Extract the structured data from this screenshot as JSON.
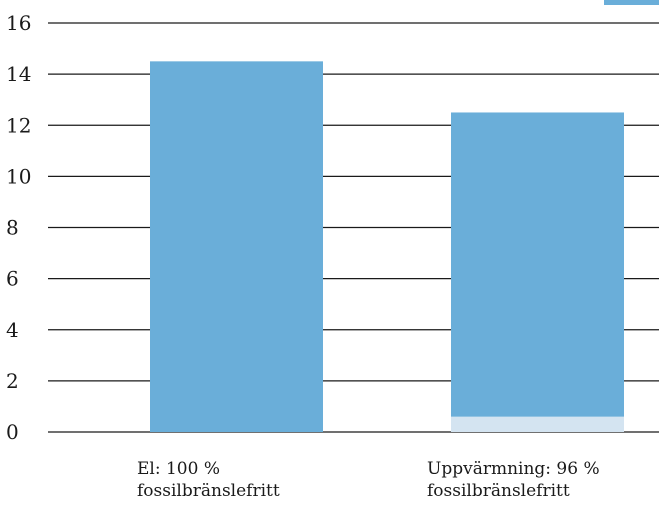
{
  "chart_data": {
    "type": "bar",
    "stacked": true,
    "categories": [
      [
        "El: 100 %",
        "fossilbränslefritt"
      ],
      [
        "Uppvärmning: 96 %",
        "fossilbränslefritt"
      ]
    ],
    "series": [
      {
        "color": "#d4e4f1",
        "values": [
          0,
          0.6
        ]
      },
      {
        "color": "#6aaed9",
        "values": [
          14.5,
          11.9
        ]
      }
    ],
    "ylim": [
      0,
      16
    ],
    "yticks": [
      0,
      2,
      4,
      6,
      8,
      10,
      12,
      14,
      16
    ],
    "grid": true,
    "legend_swatch_color": "#6aaed9"
  }
}
